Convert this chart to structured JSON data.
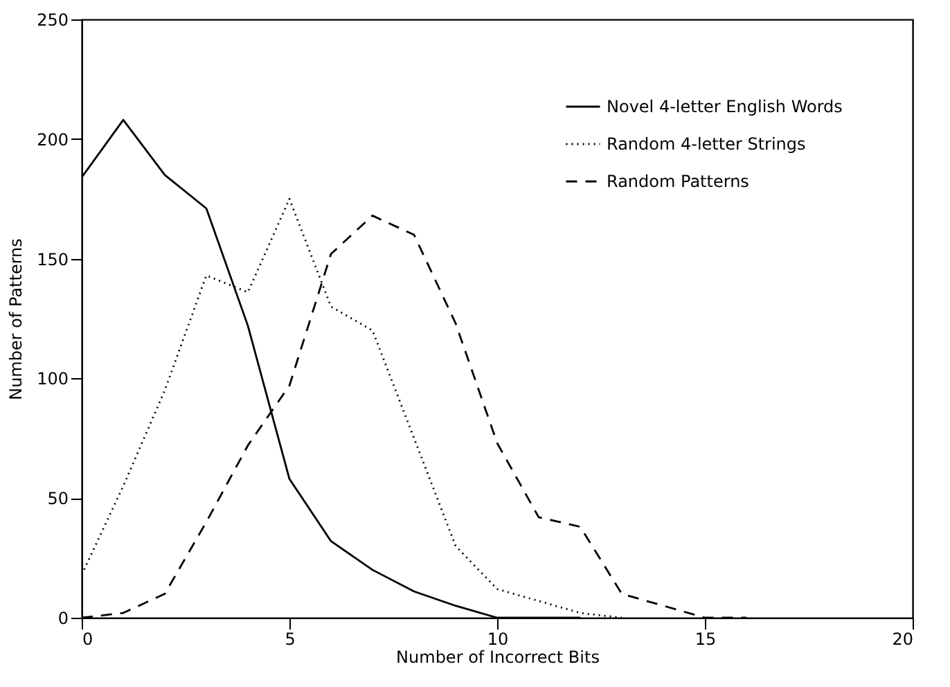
{
  "chart_data": {
    "type": "line",
    "xlabel": "Number of Incorrect Bits",
    "ylabel": "Number of Patterns",
    "xlim": [
      0,
      20
    ],
    "xticks": [
      0,
      5,
      10,
      15,
      20
    ],
    "ylim": [
      0,
      250
    ],
    "yticks": [
      0,
      50,
      100,
      150,
      200,
      250
    ],
    "grid": false,
    "legend": "top right",
    "marker": "none",
    "series": [
      {
        "name": "Novel 4-letter English Words",
        "color": "#000000",
        "line_style": "solid",
        "x": [
          0,
          1,
          2,
          3,
          4,
          5,
          6,
          7,
          8,
          9,
          10,
          11,
          12
        ],
        "values": [
          184,
          208,
          185,
          171,
          122,
          58,
          32,
          20,
          11,
          5,
          0,
          0,
          0
        ]
      },
      {
        "name": "Random 4-letter Strings",
        "color": "#000000",
        "line_style": "dotted",
        "x": [
          0,
          1,
          2,
          3,
          4,
          5,
          6,
          7,
          8,
          9,
          10,
          11,
          12,
          13
        ],
        "values": [
          18,
          55,
          95,
          143,
          136,
          175,
          130,
          120,
          75,
          30,
          12,
          7,
          2,
          0
        ]
      },
      {
        "name": "Random Patterns",
        "color": "#000000",
        "line_style": "dashed",
        "x": [
          0,
          1,
          2,
          3,
          4,
          5,
          6,
          7,
          8,
          9,
          10,
          11,
          12,
          13,
          14,
          15,
          16
        ],
        "values": [
          0,
          2,
          10,
          40,
          72,
          97,
          152,
          168,
          160,
          123,
          73,
          42,
          38,
          10,
          5,
          0,
          0
        ]
      }
    ]
  }
}
